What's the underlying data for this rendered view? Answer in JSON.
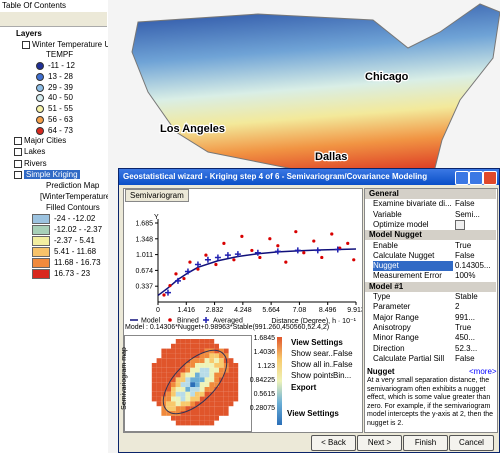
{
  "toc": {
    "title": "Table Of Contents",
    "root": "Layers",
    "layer": "Winter Temperature USA",
    "field": "TEMPF",
    "classes": [
      {
        "label": "-11 - 12",
        "color": "#1f2f96"
      },
      {
        "label": "13 - 28",
        "color": "#3f6fd0"
      },
      {
        "label": "29 - 39",
        "color": "#8fc0e8"
      },
      {
        "label": "40 - 50",
        "color": "#d6eef0"
      },
      {
        "label": "51 - 55",
        "color": "#f6f3a8"
      },
      {
        "label": "56 - 63",
        "color": "#f5a04a"
      },
      {
        "label": "64 - 73",
        "color": "#d8281e"
      }
    ],
    "layers": [
      "Major Cities",
      "Lakes",
      "Rivers",
      "Simple Kriging"
    ],
    "kriging": {
      "sublayer": "Prediction Map",
      "source": "[WinterTemperature]...",
      "contours": "Filled Contours",
      "classes": [
        {
          "label": "-24 - -12.02",
          "color": "#9cc3e0"
        },
        {
          "label": "-12.02 - -2.37",
          "color": "#a8d0b8"
        },
        {
          "label": "-2.37 - 5.41",
          "color": "#f2eea0"
        },
        {
          "label": "5.41 - 11.68",
          "color": "#f7c36a"
        },
        {
          "label": "11.68 - 16.73",
          "color": "#f08a3c"
        },
        {
          "label": "16.73 - 23",
          "color": "#d8281e"
        }
      ]
    }
  },
  "map": {
    "labels": [
      "Chicago",
      "Los Angeles",
      "Dallas"
    ]
  },
  "dialog": {
    "title": "Geostatistical wizard - Kriging step 4 of 6 - Semivariogram/Covariance Modeling",
    "tab": "Semivariogram",
    "chart_data": {
      "type": "scatter",
      "y_label": "Y",
      "x_label": "Distance (Degree), h · 10⁻¹",
      "xlim": [
        0,
        9.913
      ],
      "ylim": [
        0,
        1.685
      ],
      "xticks": [
        0,
        1.416,
        2.832,
        4.248,
        5.664,
        7.08,
        8.496,
        9.913
      ],
      "yticks": [
        0.337,
        0.674,
        1.011,
        1.348,
        1.685
      ],
      "series": [
        {
          "name": "Model",
          "color": "#10107a",
          "x": [
            0,
            0.5,
            1,
            1.5,
            2,
            3,
            4,
            5,
            6,
            7,
            8,
            9,
            9.913
          ],
          "values": [
            0.14,
            0.3,
            0.48,
            0.62,
            0.74,
            0.88,
            0.97,
            1.03,
            1.07,
            1.09,
            1.11,
            1.12,
            1.13
          ]
        },
        {
          "name": "Binned",
          "color": "#d80000",
          "x": [
            0.3,
            0.6,
            0.9,
            1.3,
            1.6,
            2.0,
            2.4,
            2.9,
            3.3,
            3.8,
            4.2,
            4.7,
            5.1,
            5.6,
            6.0,
            6.4,
            6.9,
            7.3,
            7.8,
            8.2,
            8.7,
            9.1,
            9.5,
            9.8
          ],
          "values": [
            0.15,
            0.35,
            0.6,
            0.5,
            0.85,
            0.7,
            1.0,
            0.8,
            1.25,
            0.9,
            1.4,
            1.1,
            0.95,
            1.35,
            1.2,
            0.85,
            1.5,
            1.05,
            1.3,
            0.95,
            1.45,
            1.15,
            1.25,
            0.9
          ]
        },
        {
          "name": "Averaged",
          "color": "#2020b0",
          "x": [
            0.5,
            1,
            1.5,
            2,
            2.5,
            3,
            3.5,
            4,
            5,
            6,
            7,
            8,
            9
          ],
          "values": [
            0.2,
            0.45,
            0.65,
            0.8,
            0.9,
            0.95,
            1.0,
            1.02,
            1.05,
            1.08,
            1.1,
            1.1,
            1.12
          ]
        }
      ]
    },
    "model": "Model : 0.14306*Nugget+0.98963*Stable(991.260,450560,52.4,2)",
    "map_title": "Semivariogram map",
    "map_ticks": [
      1.6845,
      1.4036,
      1.123,
      0.84225,
      0.5615,
      0.28075
    ],
    "settings": {
      "header": "View Settings",
      "rows": [
        {
          "name": "Show sear...",
          "value": "False"
        },
        {
          "name": "Show all in...",
          "value": "False"
        },
        {
          "name": "Show points",
          "value": "Bin..."
        }
      ],
      "export": "Export",
      "footer": "View Settings"
    },
    "properties": [
      {
        "name": "General",
        "rows": [
          {
            "name": "Examine bivariate di...",
            "value": "False"
          },
          {
            "name": "Variable",
            "value": "Semi..."
          },
          {
            "name": "Optimize model"
          }
        ]
      },
      {
        "name": "Model Nugget",
        "rows": [
          {
            "name": "Enable",
            "value": "True"
          },
          {
            "name": "Calculate Nugget",
            "value": "False"
          },
          {
            "name": "Nugget",
            "value": "0.14305..."
          },
          {
            "name": "Measurement Error",
            "value": "100%"
          }
        ]
      },
      {
        "name": "Model #1",
        "rows": [
          {
            "name": "Type",
            "value": "Stable"
          },
          {
            "name": "Parameter",
            "value": "2"
          },
          {
            "name": "Major Range",
            "value": "991..."
          },
          {
            "name": "Anisotropy",
            "value": "True"
          },
          {
            "name": "Minor Range",
            "value": "450..."
          },
          {
            "name": "Direction",
            "value": "52.3..."
          },
          {
            "name": "Calculate Partial Sill",
            "value": "False"
          }
        ]
      }
    ],
    "help": {
      "title": "Nugget",
      "more": "<more>",
      "text": "At a very small separation distance, the semivariogram often exhibits a nugget effect, which is some value greater than zero. For example, if the semivariogram model intercepts the y-axis at 2, then the nugget is 2."
    },
    "buttons": [
      "< Back",
      "Next >",
      "Finish",
      "Cancel"
    ]
  }
}
